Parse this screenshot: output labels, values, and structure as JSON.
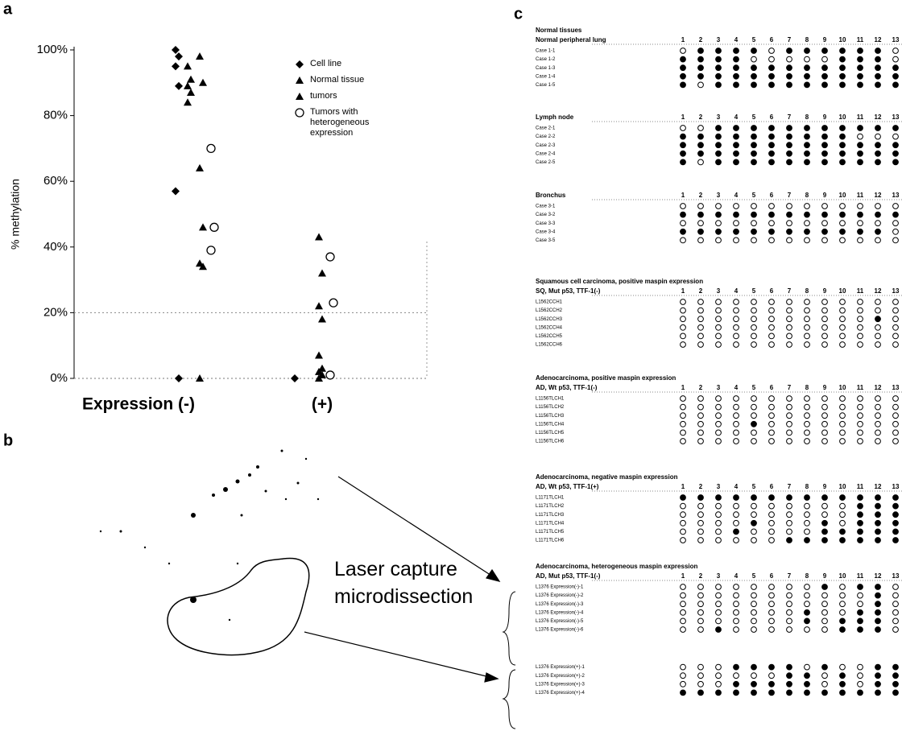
{
  "panel_labels": [
    "a",
    "b",
    "c"
  ],
  "chart_data": {
    "type": "scatter",
    "y_label": "% methylation",
    "categories": [
      "Expression (-)",
      "(+)"
    ],
    "ylim": [
      0,
      100
    ],
    "yticks": [
      {
        "value": 0,
        "label": "0%"
      },
      {
        "value": 20,
        "label": "20%"
      },
      {
        "value": 40,
        "label": "40%"
      },
      {
        "value": 60,
        "label": "60%"
      },
      {
        "value": 80,
        "label": "80%"
      },
      {
        "value": 100,
        "label": "100%"
      }
    ],
    "reference_line": 20,
    "series": [
      {
        "name": "Cell line",
        "marker": "diamond",
        "color": "#000000",
        "values": [
          [
            100,
            98,
            95,
            89,
            57,
            0
          ],
          [
            0
          ]
        ]
      },
      {
        "name": "Normal tissue",
        "marker": "triangle",
        "color": "#000000",
        "values": [
          [
            95,
            91,
            89,
            87,
            84
          ],
          []
        ]
      },
      {
        "name": "tumors",
        "marker": "triangle",
        "color": "#000000",
        "values": [
          [
            98,
            90,
            64,
            46,
            35,
            34,
            0
          ],
          [
            43,
            32,
            22,
            18,
            7,
            3,
            2,
            1,
            0
          ]
        ]
      },
      {
        "name": "Tumors with heterogeneous expression",
        "marker": "open-circle",
        "color": "#000000",
        "values": [
          [
            70,
            46,
            39
          ],
          [
            37,
            23,
            1
          ]
        ]
      }
    ]
  },
  "panel_b": {
    "label": "Laser capture microdissection"
  },
  "panel_c": {
    "columns": [
      1,
      2,
      3,
      4,
      5,
      6,
      7,
      8,
      9,
      10,
      11,
      12,
      13
    ],
    "sections": [
      {
        "title": "Normal tissues",
        "header": "Normal peripheral lung",
        "groups": [
          [
            {
              "label": "Case 1-1",
              "cells": [
                0,
                1,
                1,
                1,
                1,
                0,
                1,
                1,
                1,
                1,
                1,
                1,
                0
              ]
            },
            {
              "label": "Case 1-2",
              "cells": [
                1,
                1,
                1,
                1,
                0,
                0,
                0,
                0,
                0,
                1,
                1,
                1,
                0
              ]
            },
            {
              "label": "Case 1-3",
              "cells": [
                1,
                1,
                1,
                1,
                1,
                1,
                1,
                1,
                1,
                1,
                1,
                1,
                1
              ]
            },
            {
              "label": "Case 1-4",
              "cells": [
                1,
                1,
                1,
                1,
                1,
                1,
                1,
                1,
                1,
                1,
                1,
                1,
                1
              ]
            },
            {
              "label": "Case 1-5",
              "cells": [
                1,
                0,
                1,
                1,
                1,
                1,
                1,
                1,
                1,
                1,
                1,
                1,
                1
              ]
            }
          ]
        ]
      },
      {
        "header": "Lymph node",
        "groups": [
          [
            {
              "label": "Case 2-1",
              "cells": [
                0,
                0,
                1,
                1,
                1,
                1,
                1,
                1,
                1,
                1,
                1,
                1,
                1
              ]
            },
            {
              "label": "Case 2-2",
              "cells": [
                1,
                1,
                1,
                1,
                1,
                1,
                1,
                1,
                1,
                1,
                0,
                0,
                0
              ]
            },
            {
              "label": "Case 2-3",
              "cells": [
                1,
                1,
                1,
                1,
                1,
                1,
                1,
                1,
                1,
                1,
                1,
                1,
                1
              ]
            },
            {
              "label": "Case 2-4",
              "cells": [
                1,
                1,
                1,
                1,
                1,
                1,
                1,
                1,
                1,
                1,
                1,
                1,
                1
              ]
            },
            {
              "label": "Case 2-5",
              "cells": [
                1,
                0,
                1,
                1,
                1,
                1,
                1,
                1,
                1,
                1,
                1,
                1,
                1
              ]
            }
          ]
        ]
      },
      {
        "header": "Bronchus",
        "groups": [
          [
            {
              "label": "Case 3-1",
              "cells": [
                0,
                0,
                0,
                0,
                0,
                0,
                0,
                0,
                0,
                0,
                0,
                0,
                0
              ]
            },
            {
              "label": "Case 3-2",
              "cells": [
                1,
                1,
                1,
                1,
                1,
                1,
                1,
                1,
                1,
                1,
                1,
                1,
                1
              ]
            },
            {
              "label": "Case 3-3",
              "cells": [
                0,
                0,
                0,
                0,
                0,
                0,
                0,
                0,
                0,
                0,
                0,
                0,
                0
              ]
            },
            {
              "label": "Case 3-4",
              "cells": [
                1,
                1,
                1,
                1,
                1,
                1,
                1,
                1,
                1,
                1,
                1,
                1,
                0
              ]
            },
            {
              "label": "Case 3-5",
              "cells": [
                0,
                0,
                0,
                0,
                0,
                0,
                0,
                0,
                0,
                0,
                0,
                0,
                0
              ]
            }
          ]
        ]
      },
      {
        "title": "Squamous cell carcinoma, positive maspin expression",
        "header": "SQ, Mut p53, TTF-1(-)",
        "groups": [
          [
            {
              "label": "L1562CCH1",
              "cells": [
                0,
                0,
                0,
                0,
                0,
                0,
                0,
                0,
                0,
                0,
                0,
                0,
                0
              ]
            },
            {
              "label": "L1562CCH2",
              "cells": [
                0,
                0,
                0,
                0,
                0,
                0,
                0,
                0,
                0,
                0,
                0,
                0,
                0
              ]
            },
            {
              "label": "L1562CCH3",
              "cells": [
                0,
                0,
                0,
                0,
                0,
                0,
                0,
                0,
                0,
                0,
                0,
                1,
                0
              ]
            },
            {
              "label": "L1562CCH4",
              "cells": [
                0,
                0,
                0,
                0,
                0,
                0,
                0,
                0,
                0,
                0,
                0,
                0,
                0
              ]
            },
            {
              "label": "L1562CCH5",
              "cells": [
                0,
                0,
                0,
                0,
                0,
                0,
                0,
                0,
                0,
                0,
                0,
                0,
                0
              ]
            },
            {
              "label": "L1562CCH6",
              "cells": [
                0,
                0,
                0,
                0,
                0,
                0,
                0,
                0,
                0,
                0,
                0,
                0,
                0
              ]
            }
          ]
        ]
      },
      {
        "title": "Adenocarcinoma, positive maspin expression",
        "header": "AD, Wt p53, TTF-1(-)",
        "groups": [
          [
            {
              "label": "L1156TLCH1",
              "cells": [
                0,
                0,
                0,
                0,
                0,
                0,
                0,
                0,
                0,
                0,
                0,
                0,
                0
              ]
            },
            {
              "label": "L1156TLCH2",
              "cells": [
                0,
                0,
                0,
                0,
                0,
                0,
                0,
                0,
                0,
                0,
                0,
                0,
                0
              ]
            },
            {
              "label": "L1156TLCH3",
              "cells": [
                0,
                0,
                0,
                0,
                0,
                0,
                0,
                0,
                0,
                0,
                0,
                0,
                0
              ]
            },
            {
              "label": "L1156TLCH4",
              "cells": [
                0,
                0,
                0,
                0,
                1,
                0,
                0,
                0,
                0,
                0,
                0,
                0,
                0
              ]
            },
            {
              "label": "L1156TLCH5",
              "cells": [
                0,
                0,
                0,
                0,
                0,
                0,
                0,
                0,
                0,
                0,
                0,
                0,
                0
              ]
            },
            {
              "label": "L1156TLCH6",
              "cells": [
                0,
                0,
                0,
                0,
                0,
                0,
                0,
                0,
                0,
                0,
                0,
                0,
                0
              ]
            }
          ]
        ]
      },
      {
        "title": "Adenocarcinoma, negative maspin expression",
        "header": "AD, Wt p53, TTF-1(+)",
        "groups": [
          [
            {
              "label": "L1171TLCH1",
              "cells": [
                1,
                1,
                1,
                1,
                1,
                1,
                1,
                1,
                1,
                1,
                1,
                1,
                1
              ]
            },
            {
              "label": "L1171TLCH2",
              "cells": [
                0,
                0,
                0,
                0,
                0,
                0,
                0,
                0,
                0,
                0,
                1,
                1,
                1
              ]
            },
            {
              "label": "L1171TLCH3",
              "cells": [
                0,
                0,
                0,
                0,
                0,
                0,
                0,
                0,
                0,
                0,
                1,
                1,
                1
              ]
            },
            {
              "label": "L1171TLCH4",
              "cells": [
                0,
                0,
                0,
                0,
                1,
                0,
                0,
                0,
                1,
                0,
                1,
                1,
                1
              ]
            },
            {
              "label": "L1171TLCH5",
              "cells": [
                0,
                0,
                0,
                1,
                0,
                0,
                0,
                0,
                1,
                1,
                1,
                1,
                1
              ]
            },
            {
              "label": "L1171TLCH6",
              "cells": [
                0,
                0,
                0,
                0,
                0,
                0,
                1,
                1,
                1,
                1,
                1,
                1,
                1
              ]
            }
          ]
        ]
      },
      {
        "title": "Adenocarcinoma, heterogeneous maspin expression",
        "header": "AD, Mut p53, TTF-1(-)",
        "groups": [
          [
            {
              "label": "L1376 Expression(-)-1",
              "cells": [
                0,
                0,
                0,
                0,
                0,
                0,
                0,
                0,
                1,
                0,
                1,
                1,
                0
              ]
            },
            {
              "label": "L1376 Expression(-)-2",
              "cells": [
                0,
                0,
                0,
                0,
                0,
                0,
                0,
                0,
                0,
                0,
                0,
                1,
                0
              ]
            },
            {
              "label": "L1376 Expression(-)-3",
              "cells": [
                0,
                0,
                0,
                0,
                0,
                0,
                0,
                0,
                0,
                0,
                0,
                1,
                0
              ]
            },
            {
              "label": "L1376 Expression(-)-4",
              "cells": [
                0,
                0,
                0,
                0,
                0,
                0,
                0,
                1,
                0,
                0,
                1,
                1,
                0
              ]
            },
            {
              "label": "L1376 Expression(-)-5",
              "cells": [
                0,
                0,
                0,
                0,
                0,
                0,
                0,
                1,
                0,
                1,
                1,
                1,
                0
              ]
            },
            {
              "label": "L1376 Expression(-)-6",
              "cells": [
                0,
                0,
                1,
                0,
                0,
                0,
                0,
                0,
                0,
                1,
                1,
                1,
                0
              ]
            }
          ],
          [
            {
              "label": "L1376 Expression(+)-1",
              "cells": [
                0,
                0,
                0,
                1,
                1,
                1,
                1,
                0,
                1,
                0,
                0,
                1,
                1
              ]
            },
            {
              "label": "L1376 Expression(+)-2",
              "cells": [
                0,
                0,
                0,
                0,
                0,
                0,
                1,
                1,
                0,
                1,
                0,
                1,
                1
              ]
            },
            {
              "label": "L1376 Expression(+)-3",
              "cells": [
                0,
                0,
                0,
                1,
                1,
                1,
                1,
                1,
                0,
                1,
                0,
                1,
                1
              ]
            },
            {
              "label": "L1376 Expression(+)-4",
              "cells": [
                1,
                1,
                1,
                1,
                1,
                1,
                1,
                1,
                1,
                1,
                1,
                1,
                1
              ]
            }
          ]
        ]
      }
    ]
  }
}
